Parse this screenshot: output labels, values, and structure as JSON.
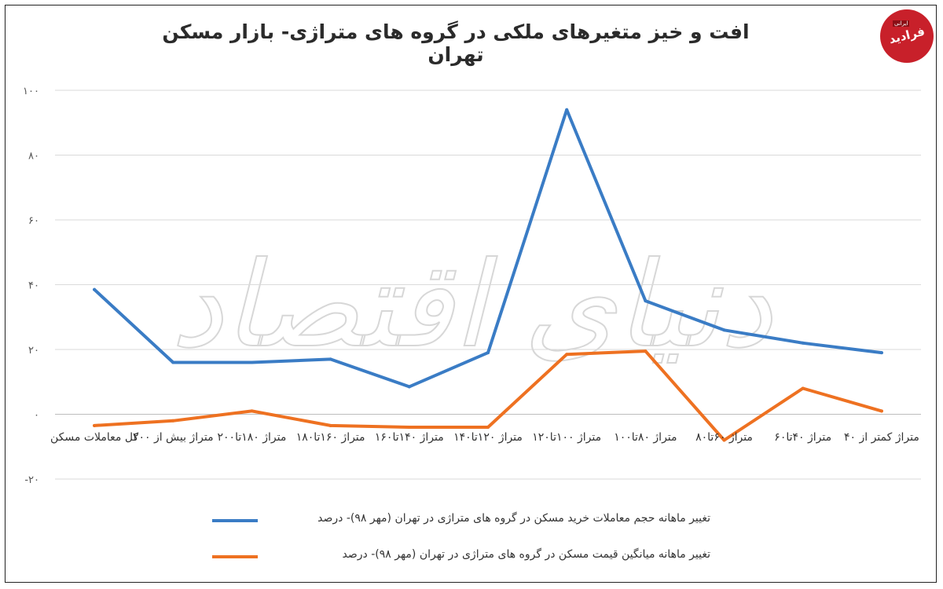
{
  "chart_data": {
    "type": "line",
    "title": "افت و خیز متغیرهای ملکی در گروه های متراژی- بازار مسکن تهران",
    "categories": [
      "متراژ کمتر از ۴۰",
      "متراژ ۴۰تا۶۰",
      "متراژ ۶۰تا۸۰",
      "متراژ ۸۰تا۱۰۰",
      "متراژ ۱۰۰تا۱۲۰",
      "متراژ ۱۲۰تا۱۴۰",
      "متراژ ۱۴۰تا۱۶۰",
      "متراژ ۱۶۰تا۱۸۰",
      "متراژ ۱۸۰تا۲۰۰",
      "متراژ بیش از ۲۰۰",
      "کل معاملات مسکن"
    ],
    "category_order": "right-to-left",
    "series": [
      {
        "name": "تغییر ماهانه حجم معاملات خرید مسکن در گروه های متراژی در تهران (مهر ۹۸)- درصد",
        "color": "#3a7cc5",
        "values": [
          19,
          22,
          26,
          35,
          94,
          19,
          8.5,
          17,
          16,
          16,
          38.5
        ]
      },
      {
        "name": "تغییر ماهانه میانگین قیمت مسکن در گروه های متراژی در تهران (مهر ۹۸)- درصد",
        "color": "#ee7121",
        "values": [
          1,
          8,
          -8,
          19.5,
          18.5,
          -4,
          -4,
          -3.5,
          1,
          -2,
          -3.5
        ]
      }
    ],
    "yticks": [
      "-۲۰",
      "۰",
      "۲۰",
      "۴۰",
      "۶۰",
      "۸۰",
      "۱۰۰"
    ],
    "ylim": [
      -20,
      100
    ],
    "grid": "horizontal",
    "legend_position": "bottom"
  },
  "logo": {
    "text": "فرادید",
    "tag": "ایرانی",
    "color": "#c8202a"
  },
  "watermark": {
    "text": "دنیای اقتصاد"
  }
}
